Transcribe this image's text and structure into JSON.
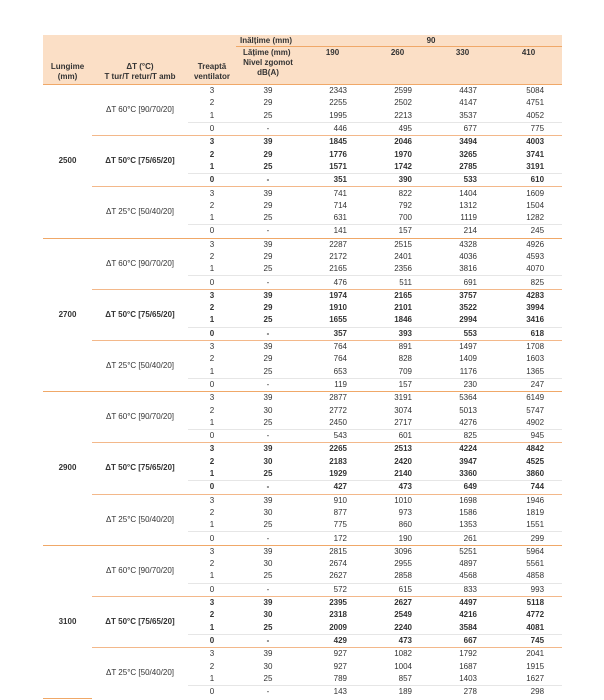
{
  "header": {
    "height_label": "Inălțime (mm)",
    "height_value": 90,
    "width_label": "Lățime (mm)",
    "widths": [
      190,
      260,
      330,
      410
    ],
    "noise_label": "Nivel zgomot dB(A)",
    "length_label": "Lungime (mm)",
    "dt_label": [
      "ΔT (°C)",
      "T tur/T retur/T amb"
    ],
    "fan_label": "Treaptă ventilator"
  },
  "blocks": [
    {
      "length": 2500,
      "groups": [
        {
          "label": "ΔT 60°C [90/70/20]",
          "rows": [
            [
              3,
              39,
              2343,
              2599,
              4437,
              5084
            ],
            [
              2,
              29,
              2255,
              2502,
              4147,
              4751
            ],
            [
              1,
              25,
              1995,
              2213,
              3537,
              4052
            ],
            [
              0,
              "-",
              446,
              495,
              677,
              775
            ]
          ]
        },
        {
          "label": "ΔT 50°C [75/65/20]",
          "rows": [
            [
              3,
              39,
              1845,
              2046,
              3494,
              4003
            ],
            [
              2,
              29,
              1776,
              1970,
              3265,
              3741
            ],
            [
              1,
              25,
              1571,
              1742,
              2785,
              3191
            ],
            [
              0,
              "-",
              351,
              390,
              533,
              610
            ]
          ]
        },
        {
          "label": "ΔT 25°C [50/40/20]",
          "rows": [
            [
              3,
              39,
              741,
              822,
              1404,
              1609
            ],
            [
              2,
              29,
              714,
              792,
              1312,
              1504
            ],
            [
              1,
              25,
              631,
              700,
              1119,
              1282
            ],
            [
              0,
              "-",
              141,
              157,
              214,
              245
            ]
          ]
        }
      ]
    },
    {
      "length": 2700,
      "groups": [
        {
          "label": "ΔT 60°C [90/70/20]",
          "rows": [
            [
              3,
              39,
              2287,
              2515,
              4328,
              4926
            ],
            [
              2,
              29,
              2172,
              2401,
              4036,
              4593
            ],
            [
              1,
              25,
              2165,
              2356,
              3816,
              4070
            ],
            [
              0,
              "-",
              476,
              511,
              691,
              825
            ]
          ]
        },
        {
          "label": "ΔT 50°C [75/65/20]",
          "rows": [
            [
              3,
              39,
              1974,
              2165,
              3757,
              4283
            ],
            [
              2,
              29,
              1910,
              2101,
              3522,
              3994
            ],
            [
              1,
              25,
              1655,
              1846,
              2994,
              3416
            ],
            [
              0,
              "-",
              357,
              393,
              553,
              618
            ]
          ]
        },
        {
          "label": "ΔT 25°C [50/40/20]",
          "rows": [
            [
              3,
              39,
              764,
              891,
              1497,
              1708
            ],
            [
              2,
              29,
              764,
              828,
              1409,
              1603
            ],
            [
              1,
              25,
              653,
              709,
              1176,
              1365
            ],
            [
              0,
              "-",
              119,
              157,
              230,
              247
            ]
          ]
        }
      ]
    },
    {
      "length": 2900,
      "groups": [
        {
          "label": "ΔT 60°C [90/70/20]",
          "rows": [
            [
              3,
              39,
              2877,
              3191,
              5364,
              6149
            ],
            [
              2,
              30,
              2772,
              3074,
              5013,
              5747
            ],
            [
              1,
              25,
              2450,
              2717,
              4276,
              4902
            ],
            [
              0,
              "-",
              543,
              601,
              825,
              945
            ]
          ]
        },
        {
          "label": "ΔT 50°C [75/65/20]",
          "rows": [
            [
              3,
              39,
              2265,
              2513,
              4224,
              4842
            ],
            [
              2,
              30,
              2183,
              2420,
              3947,
              4525
            ],
            [
              1,
              25,
              1929,
              2140,
              3360,
              3860
            ],
            [
              0,
              "-",
              427,
              473,
              649,
              744
            ]
          ]
        },
        {
          "label": "ΔT 25°C [50/40/20]",
          "rows": [
            [
              3,
              39,
              910,
              1010,
              1698,
              1946
            ],
            [
              2,
              30,
              877,
              973,
              1586,
              1819
            ],
            [
              1,
              25,
              775,
              860,
              1353,
              1551
            ],
            [
              0,
              "-",
              172,
              190,
              261,
              299
            ]
          ]
        }
      ]
    },
    {
      "length": 3100,
      "groups": [
        {
          "label": "ΔT 60°C [90/70/20]",
          "rows": [
            [
              3,
              39,
              2815,
              3096,
              5251,
              5964
            ],
            [
              2,
              30,
              2674,
              2955,
              4897,
              5561
            ],
            [
              1,
              25,
              2627,
              2858,
              4568,
              4858
            ],
            [
              0,
              "-",
              572,
              615,
              833,
              993
            ]
          ]
        },
        {
          "label": "ΔT 50°C [75/65/20]",
          "rows": [
            [
              3,
              39,
              2395,
              2627,
              4497,
              5118
            ],
            [
              2,
              30,
              2318,
              2549,
              4216,
              4772
            ],
            [
              1,
              25,
              2009,
              2240,
              3584,
              4081
            ],
            [
              0,
              "-",
              429,
              473,
              667,
              745
            ]
          ]
        },
        {
          "label": "ΔT 25°C [50/40/20]",
          "rows": [
            [
              3,
              39,
              927,
              1082,
              1792,
              2041
            ],
            [
              2,
              30,
              927,
              1004,
              1687,
              1915
            ],
            [
              1,
              25,
              789,
              857,
              1403,
              1627
            ],
            [
              0,
              "-",
              143,
              189,
              278,
              298
            ]
          ]
        }
      ]
    }
  ]
}
